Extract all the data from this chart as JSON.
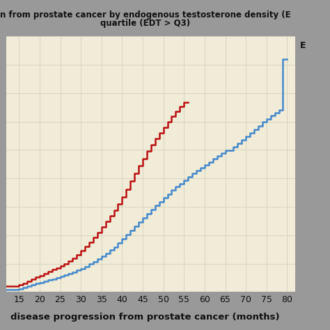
{
  "title_line1": "n from prostate cancer by endogenous testosterone density (E",
  "title_line2": "quartile (EDT > Q3)",
  "xlabel": "disease progression from prostate cancer (months)",
  "bg_color": "#F0ECD8",
  "outer_bg": "#999999",
  "red_color": "#BB1111",
  "blue_color": "#4488CC",
  "xlim": [
    12,
    82
  ],
  "ylim": [
    0,
    0.9
  ],
  "xticks": [
    15,
    20,
    25,
    30,
    35,
    40,
    45,
    50,
    55,
    60,
    65,
    70,
    75,
    80
  ],
  "red_x": [
    12,
    14,
    15,
    16,
    17,
    18,
    19,
    20,
    21,
    22,
    23,
    24,
    25,
    26,
    27,
    28,
    29,
    30,
    31,
    32,
    33,
    34,
    35,
    36,
    37,
    38,
    39,
    40,
    41,
    42,
    43,
    44,
    45,
    46,
    47,
    48,
    49,
    50,
    51,
    52,
    53,
    54,
    55,
    56
  ],
  "red_y": [
    0.02,
    0.02,
    0.025,
    0.03,
    0.038,
    0.046,
    0.052,
    0.058,
    0.065,
    0.072,
    0.079,
    0.085,
    0.092,
    0.1,
    0.11,
    0.12,
    0.132,
    0.145,
    0.16,
    0.175,
    0.192,
    0.21,
    0.228,
    0.248,
    0.268,
    0.288,
    0.31,
    0.335,
    0.362,
    0.39,
    0.418,
    0.445,
    0.47,
    0.495,
    0.518,
    0.54,
    0.56,
    0.58,
    0.6,
    0.618,
    0.636,
    0.652,
    0.668,
    0.668
  ],
  "blue_x": [
    12,
    14,
    15,
    16,
    17,
    18,
    19,
    20,
    21,
    22,
    23,
    24,
    25,
    26,
    27,
    28,
    29,
    30,
    31,
    32,
    33,
    34,
    35,
    36,
    37,
    38,
    39,
    40,
    41,
    42,
    43,
    44,
    45,
    46,
    47,
    48,
    49,
    50,
    51,
    52,
    53,
    54,
    55,
    56,
    57,
    58,
    59,
    60,
    61,
    62,
    63,
    64,
    65,
    66,
    67,
    68,
    69,
    70,
    71,
    72,
    73,
    74,
    75,
    76,
    77,
    78,
    79,
    80
  ],
  "blue_y": [
    0.008,
    0.008,
    0.012,
    0.016,
    0.021,
    0.026,
    0.03,
    0.034,
    0.038,
    0.042,
    0.046,
    0.05,
    0.054,
    0.06,
    0.065,
    0.07,
    0.076,
    0.083,
    0.09,
    0.098,
    0.107,
    0.116,
    0.126,
    0.136,
    0.147,
    0.158,
    0.172,
    0.187,
    0.203,
    0.218,
    0.232,
    0.245,
    0.26,
    0.275,
    0.29,
    0.304,
    0.318,
    0.332,
    0.345,
    0.358,
    0.37,
    0.382,
    0.394,
    0.406,
    0.418,
    0.428,
    0.438,
    0.448,
    0.458,
    0.468,
    0.478,
    0.488,
    0.498,
    0.498,
    0.51,
    0.522,
    0.535,
    0.548,
    0.56,
    0.573,
    0.585,
    0.598,
    0.61,
    0.62,
    0.63,
    0.64,
    0.82,
    0.82
  ],
  "legend_label_B": "E",
  "grid_color": "#D8D4BE",
  "line_width": 1.8
}
